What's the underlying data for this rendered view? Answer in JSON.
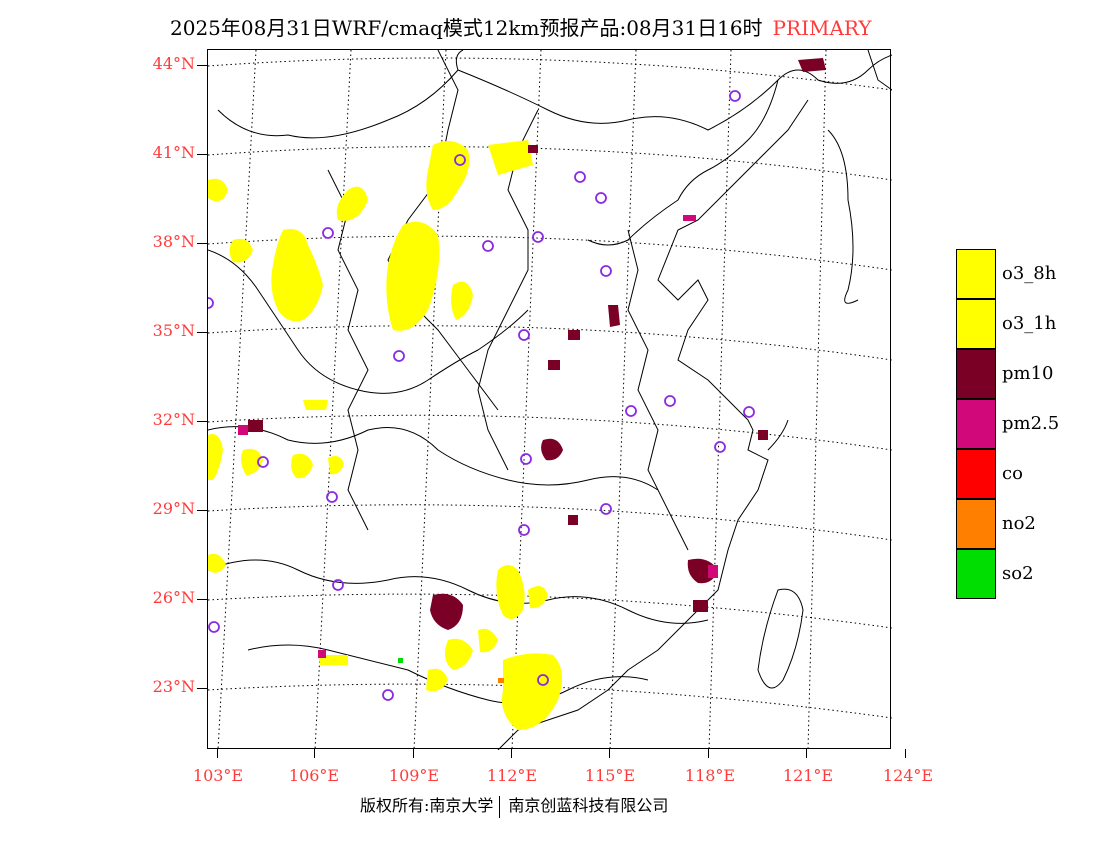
{
  "title": {
    "main": "2025年08月31日WRF/cmaq模式12km预报产品:08月31日16时",
    "tag": "PRIMARY",
    "tag_color": "#ff3b3b"
  },
  "axes": {
    "lat_labels": [
      "44°N",
      "41°N",
      "38°N",
      "35°N",
      "32°N",
      "29°N",
      "26°N",
      "23°N"
    ],
    "lon_labels": [
      "103°E",
      "106°E",
      "109°E",
      "112°E",
      "115°E",
      "118°E",
      "121°E",
      "124°E"
    ],
    "label_color": "#ff3b3b"
  },
  "legend": [
    {
      "label": "o3_8h",
      "color": "#ffff00"
    },
    {
      "label": "o3_1h",
      "color": "#ffff00"
    },
    {
      "label": "pm10",
      "color": "#7a0026"
    },
    {
      "label": "pm2.5",
      "color": "#d0087a"
    },
    {
      "label": "co",
      "color": "#ff0000"
    },
    {
      "label": "no2",
      "color": "#ff8000"
    },
    {
      "label": "so2",
      "color": "#00dd00"
    }
  ],
  "footer": {
    "left": "版权所有:南京大学",
    "right": "南京创蓝科技有限公司"
  },
  "colors": {
    "o3": "#ffff00",
    "pm10": "#7a0026",
    "pm25": "#d0087a",
    "station_marker": "#8a2be2"
  }
}
